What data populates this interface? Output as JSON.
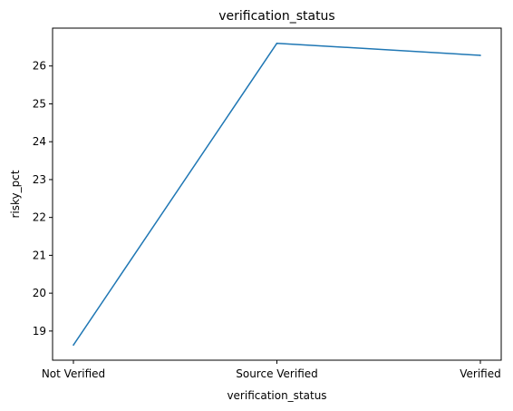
{
  "chart_data": {
    "type": "line",
    "title": "verification_status",
    "xlabel": "verification_status",
    "ylabel": "risky_pct",
    "categories": [
      "Not Verified",
      "Source Verified",
      "Verified"
    ],
    "series": [
      {
        "values": [
          18.63,
          26.6,
          26.28
        ],
        "color": "#1f77b4"
      }
    ],
    "yticks": [
      "19",
      "20",
      "21",
      "22",
      "23",
      "24",
      "25",
      "26"
    ],
    "ylim": [
      18.23,
      27.0
    ],
    "grid": false
  }
}
